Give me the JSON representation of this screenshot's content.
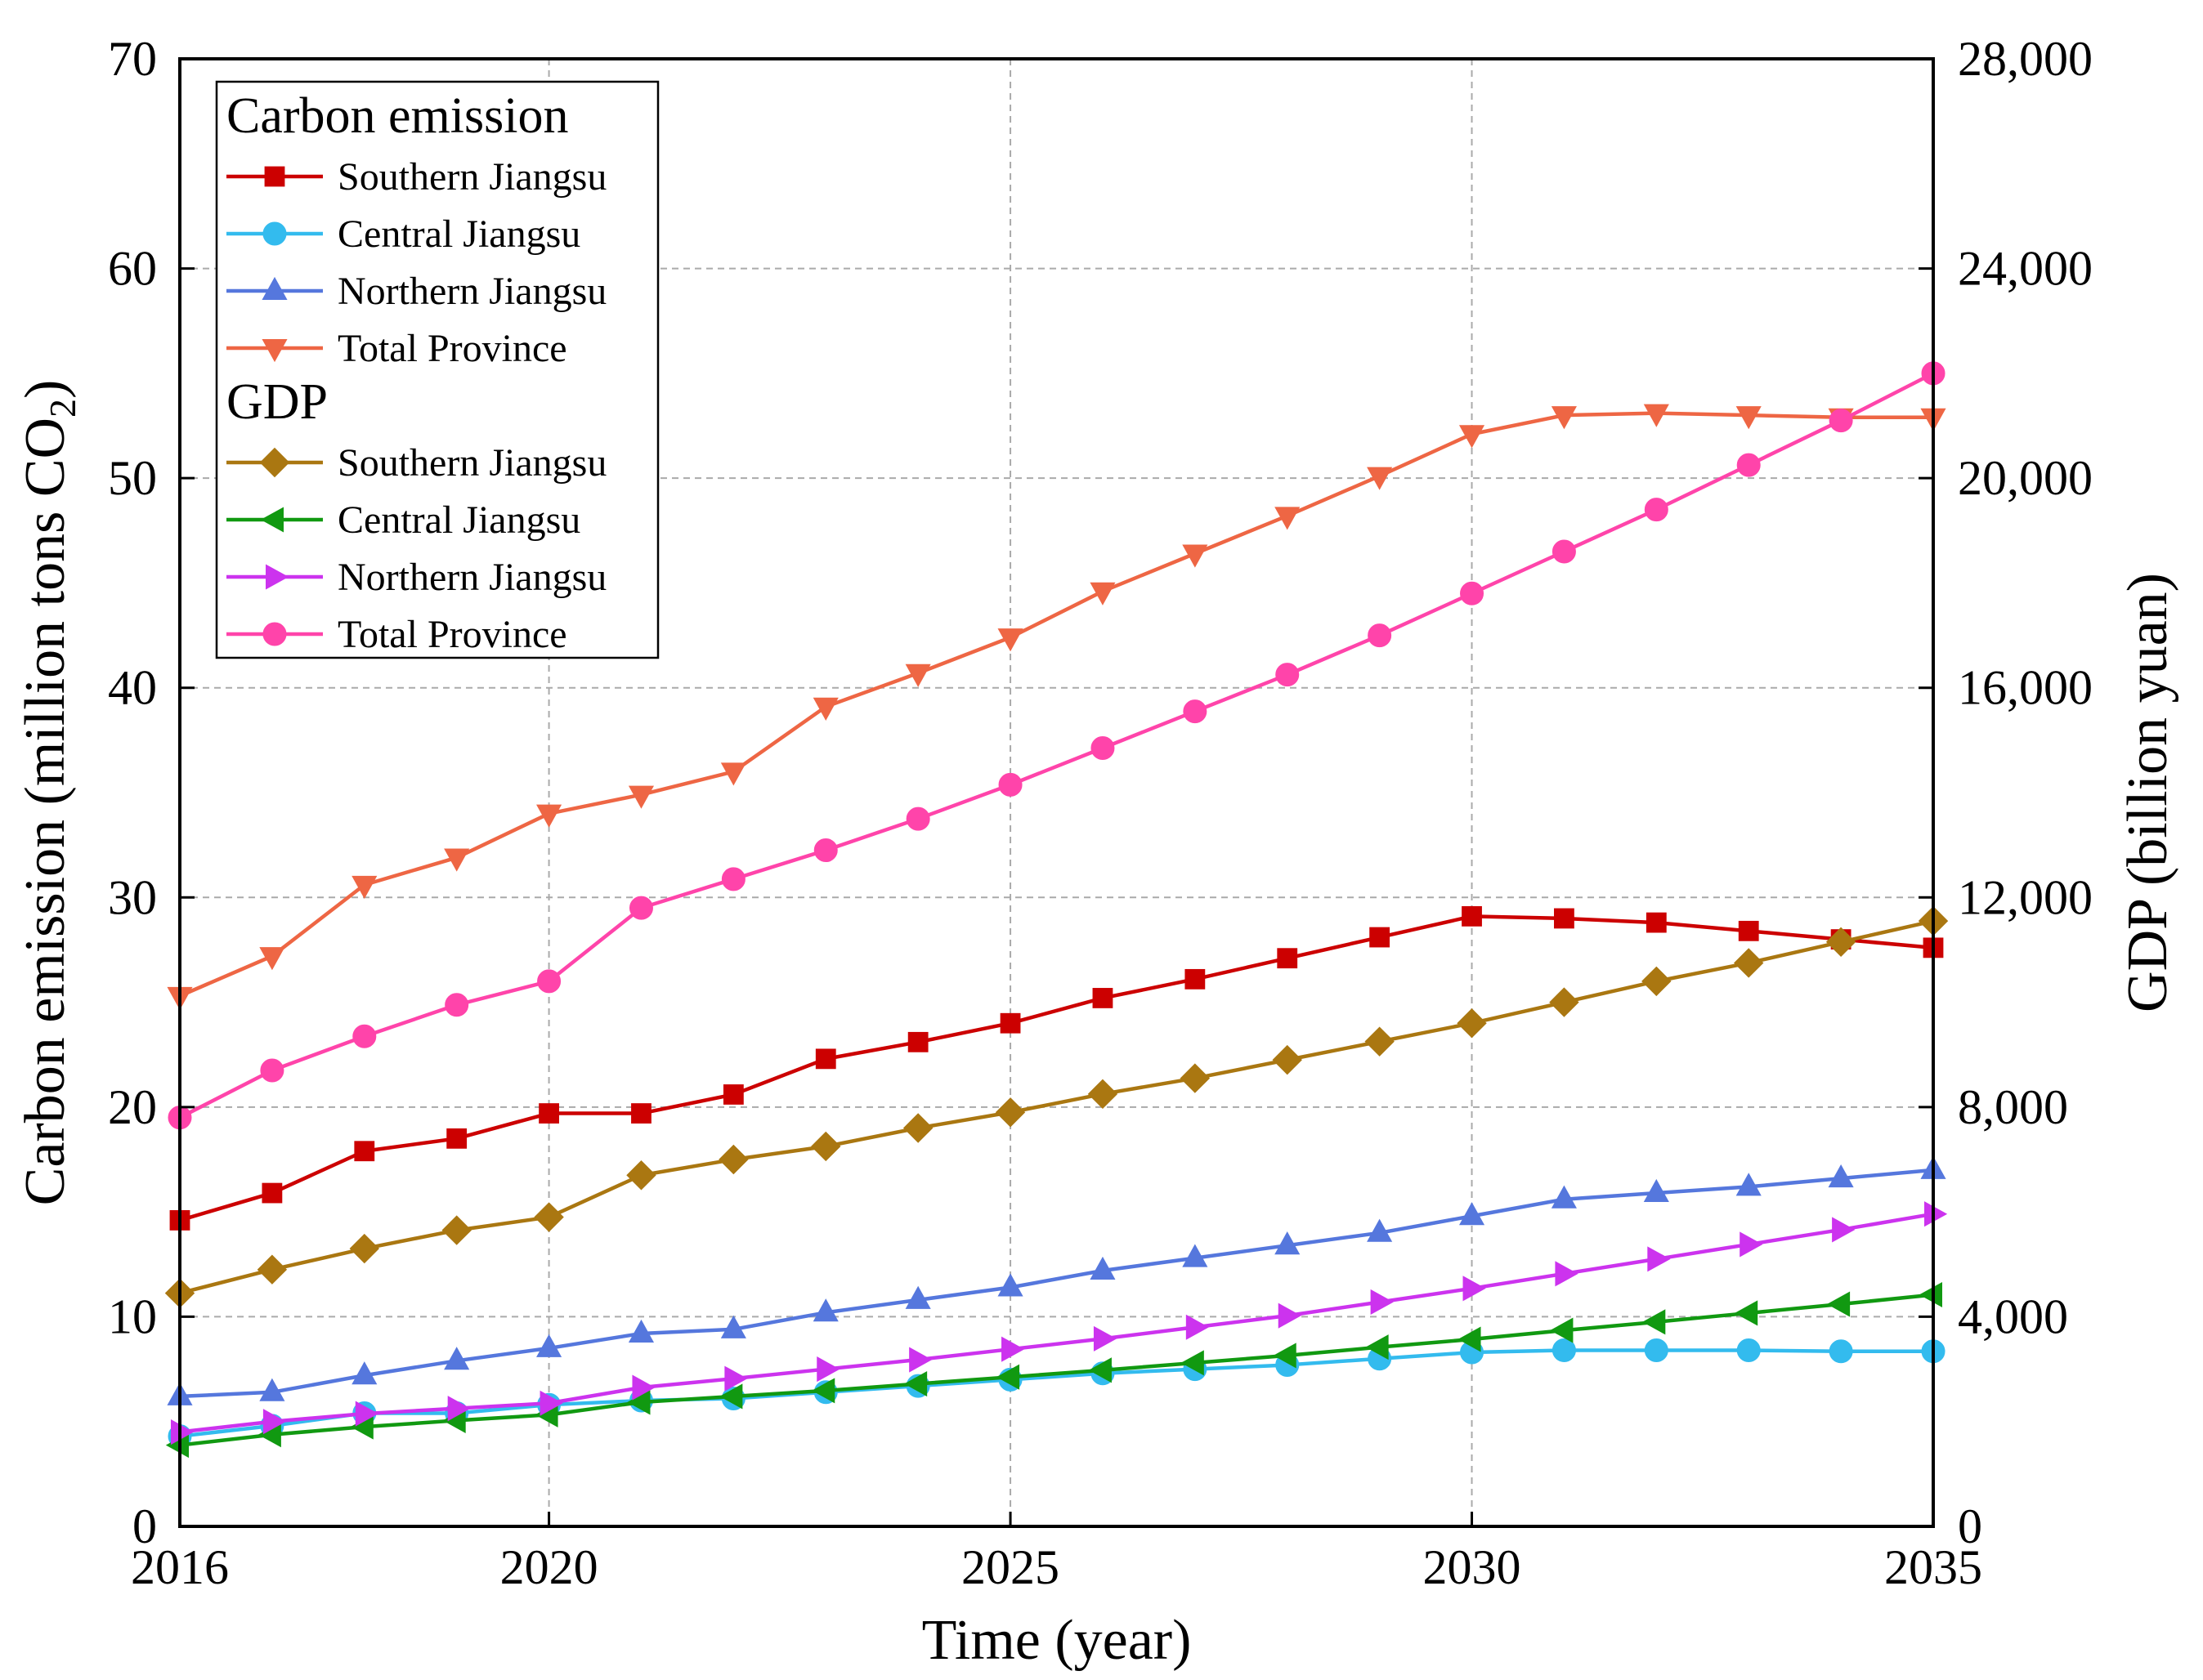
{
  "chart_data": {
    "type": "line",
    "xlabel": "Time (year)",
    "ylabel_left": {
      "main": "Carbon emission (million tons CO",
      "sub": "2",
      "close": ")"
    },
    "ylabel_right": "GDP (billion yuan)",
    "xlim": [
      2016,
      2035
    ],
    "ylim_left": [
      0,
      70
    ],
    "ylim_right": [
      0,
      28000
    ],
    "x_ticks": [
      2016,
      2020,
      2025,
      2030,
      2035
    ],
    "x_tick_labels": [
      "2016",
      "2020",
      "2025",
      "2030",
      "2035"
    ],
    "y_left_ticks": [
      0,
      10,
      20,
      30,
      40,
      50,
      60,
      70
    ],
    "y_left_tick_labels": [
      "0",
      "10",
      "20",
      "30",
      "40",
      "50",
      "60",
      "70"
    ],
    "y_right_ticks": [
      0,
      4000,
      8000,
      12000,
      16000,
      20000,
      24000,
      28000
    ],
    "y_right_tick_labels": [
      "0",
      "4,000",
      "8,000",
      "12,000",
      "16,000",
      "20,000",
      "24,000",
      "28,000"
    ],
    "grid": true,
    "legend_position": "top-left",
    "years": [
      2016,
      2017,
      2018,
      2019,
      2020,
      2021,
      2022,
      2023,
      2024,
      2025,
      2026,
      2027,
      2028,
      2029,
      2030,
      2031,
      2032,
      2033,
      2034,
      2035
    ],
    "groups": [
      {
        "title": "Carbon emission",
        "axis": "left",
        "series": [
          {
            "name": "Southern Jiangsu",
            "color": "#cc0000",
            "marker": "square",
            "values": [
              14.6,
              15.9,
              17.9,
              18.5,
              19.7,
              19.7,
              20.6,
              22.3,
              23.1,
              24.0,
              25.2,
              26.1,
              27.1,
              28.1,
              29.1,
              29.0,
              28.8,
              28.4,
              28.0,
              27.6
            ]
          },
          {
            "name": "Central Jiangsu",
            "color": "#33bbee",
            "marker": "circle",
            "values": [
              4.3,
              4.8,
              5.4,
              5.4,
              5.8,
              6.0,
              6.1,
              6.4,
              6.7,
              7.0,
              7.3,
              7.5,
              7.7,
              8.0,
              8.3,
              8.4,
              8.4,
              8.4,
              8.35,
              8.35
            ]
          },
          {
            "name": "Northern Jiangsu",
            "color": "#5577dd",
            "marker": "triangle-up",
            "values": [
              6.2,
              6.4,
              7.2,
              7.9,
              8.5,
              9.2,
              9.4,
              10.2,
              10.8,
              11.4,
              12.2,
              12.8,
              13.4,
              14.0,
              14.8,
              15.6,
              15.9,
              16.2,
              16.6,
              17.0
            ]
          },
          {
            "name": "Total Province",
            "color": "#ee6644",
            "marker": "triangle-down",
            "values": [
              25.3,
              27.2,
              30.6,
              31.9,
              34.0,
              34.9,
              36.0,
              39.1,
              40.7,
              42.4,
              44.6,
              46.4,
              48.2,
              50.1,
              52.1,
              53.0,
              53.1,
              53.0,
              52.9,
              52.9
            ]
          }
        ]
      },
      {
        "title": "GDP",
        "axis": "right",
        "series": [
          {
            "name": "Southern Jiangsu",
            "color": "#aa7711",
            "marker": "diamond",
            "values": [
              4450,
              4900,
              5300,
              5650,
              5900,
              6700,
              7000,
              7250,
              7600,
              7900,
              8250,
              8550,
              8900,
              9250,
              9600,
              10000,
              10400,
              10750,
              11150,
              11550
            ]
          },
          {
            "name": "Central Jiangsu",
            "color": "#119911",
            "marker": "triangle-left",
            "values": [
              1550,
              1750,
              1900,
              2020,
              2130,
              2370,
              2480,
              2590,
              2720,
              2850,
              2980,
              3120,
              3260,
              3420,
              3570,
              3740,
              3900,
              4070,
              4240,
              4420
            ]
          },
          {
            "name": "Northern Jiangsu",
            "color": "#cc33ee",
            "marker": "triangle-right",
            "values": [
              1800,
              2000,
              2150,
              2250,
              2350,
              2650,
              2820,
              3000,
              3180,
              3380,
              3580,
              3800,
              4020,
              4280,
              4540,
              4820,
              5100,
              5380,
              5660,
              5960
            ]
          },
          {
            "name": "Total Province",
            "color": "#ff44aa",
            "marker": "circle",
            "values": [
              7800,
              8700,
              9350,
              9950,
              10400,
              11800,
              12350,
              12900,
              13500,
              14150,
              14850,
              15550,
              16250,
              17000,
              17800,
              18600,
              19400,
              20250,
              21100,
              22000
            ]
          }
        ]
      }
    ]
  }
}
